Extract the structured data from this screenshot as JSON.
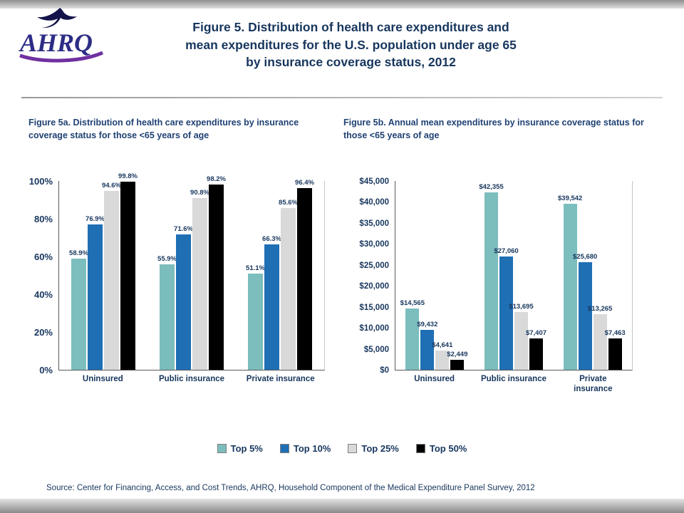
{
  "header": {
    "logo_text": "AHRQ",
    "title_lines": [
      "Figure 5. Distribution of health care expenditures and",
      "mean expenditures for the U.S. population under age 65",
      "by insurance coverage status, 2012"
    ]
  },
  "panels": [
    {
      "subtitle": "Figure 5a. Distribution of health care expenditures by insurance coverage status for those <65 years of age"
    },
    {
      "subtitle": "Figure 5b. Annual mean expenditures by insurance coverage status for those <65 years of age"
    }
  ],
  "legend": {
    "items": [
      {
        "label": "Top 5%",
        "color": "#7CBDBD"
      },
      {
        "label": "Top 10%",
        "color": "#1F6FB5"
      },
      {
        "label": "Top 25%",
        "color": "#D9D9D9"
      },
      {
        "label": "Top 50%",
        "color": "#000000"
      }
    ]
  },
  "source": "Source: Center for Financing, Access, and Cost Trends, AHRQ, Household Component of the Medical Expenditure Panel Survey, 2012",
  "colors": {
    "navy_text": "#17365D",
    "top5": "#7CBDBD",
    "top10": "#1F6FB5",
    "top25": "#D9D9D9",
    "top50": "#000000"
  },
  "chart_data": [
    {
      "type": "bar",
      "title": "Figure 5a. Distribution of health care expenditures by insurance coverage status for those <65 years of age",
      "xlabel": "",
      "ylabel": "",
      "grid": false,
      "legend_position": "bottom",
      "ylim": [
        0,
        100
      ],
      "categories": [
        "Uninsured",
        "Public insurance",
        "Private insurance"
      ],
      "yticks": [
        {
          "v": 0,
          "label": "0%"
        },
        {
          "v": 20,
          "label": "20%"
        },
        {
          "v": 40,
          "label": "40%"
        },
        {
          "v": 60,
          "label": "60%"
        },
        {
          "v": 80,
          "label": "80%"
        },
        {
          "v": 100,
          "label": "100%"
        }
      ],
      "series": [
        {
          "name": "Top 5%",
          "color": "#7CBDBD",
          "values": [
            58.9,
            55.9,
            51.1
          ],
          "labels": [
            "58.9%",
            "55.9%",
            "51.1%"
          ]
        },
        {
          "name": "Top 10%",
          "color": "#1F6FB5",
          "values": [
            76.9,
            71.6,
            66.3
          ],
          "labels": [
            "76.9%",
            "71.6%",
            "66.3%"
          ]
        },
        {
          "name": "Top 25%",
          "color": "#D9D9D9",
          "values": [
            94.6,
            90.8,
            85.6
          ],
          "labels": [
            "94.6%",
            "90.8%",
            "85.6%"
          ]
        },
        {
          "name": "Top 50%",
          "color": "#000000",
          "values": [
            99.8,
            98.2,
            96.4
          ],
          "labels": [
            "99.8%",
            "98.2%",
            "96.4%"
          ]
        }
      ]
    },
    {
      "type": "bar",
      "title": "Figure 5b. Annual mean expenditures by insurance coverage status for those <65 years of age",
      "xlabel": "",
      "ylabel": "",
      "grid": false,
      "legend_position": "bottom",
      "ylim": [
        0,
        45000
      ],
      "categories": [
        "Uninsured",
        "Public insurance",
        "Private\ninsurance"
      ],
      "yticks": [
        {
          "v": 0,
          "label": "$0"
        },
        {
          "v": 5000,
          "label": "$5,000"
        },
        {
          "v": 10000,
          "label": "$10,000"
        },
        {
          "v": 15000,
          "label": "$15,000"
        },
        {
          "v": 20000,
          "label": "$20,000"
        },
        {
          "v": 25000,
          "label": "$25,000"
        },
        {
          "v": 30000,
          "label": "$30,000"
        },
        {
          "v": 35000,
          "label": "$35,000"
        },
        {
          "v": 40000,
          "label": "$40,000"
        },
        {
          "v": 45000,
          "label": "$45,000"
        }
      ],
      "series": [
        {
          "name": "Top 5%",
          "color": "#7CBDBD",
          "values": [
            14565,
            42355,
            39542
          ],
          "labels": [
            "$14,565",
            "$42,355",
            "$39,542"
          ]
        },
        {
          "name": "Top 10%",
          "color": "#1F6FB5",
          "values": [
            9432,
            27060,
            25680
          ],
          "labels": [
            "$9,432",
            "$27,060",
            "$25,680"
          ]
        },
        {
          "name": "Top 25%",
          "color": "#D9D9D9",
          "values": [
            4641,
            13695,
            13265
          ],
          "labels": [
            "$4,641",
            "$13,695",
            "$13,265"
          ]
        },
        {
          "name": "Top 50%",
          "color": "#000000",
          "values": [
            2449,
            7407,
            7463
          ],
          "labels": [
            "$2,449",
            "$7,407",
            "$7,463"
          ]
        }
      ]
    }
  ]
}
